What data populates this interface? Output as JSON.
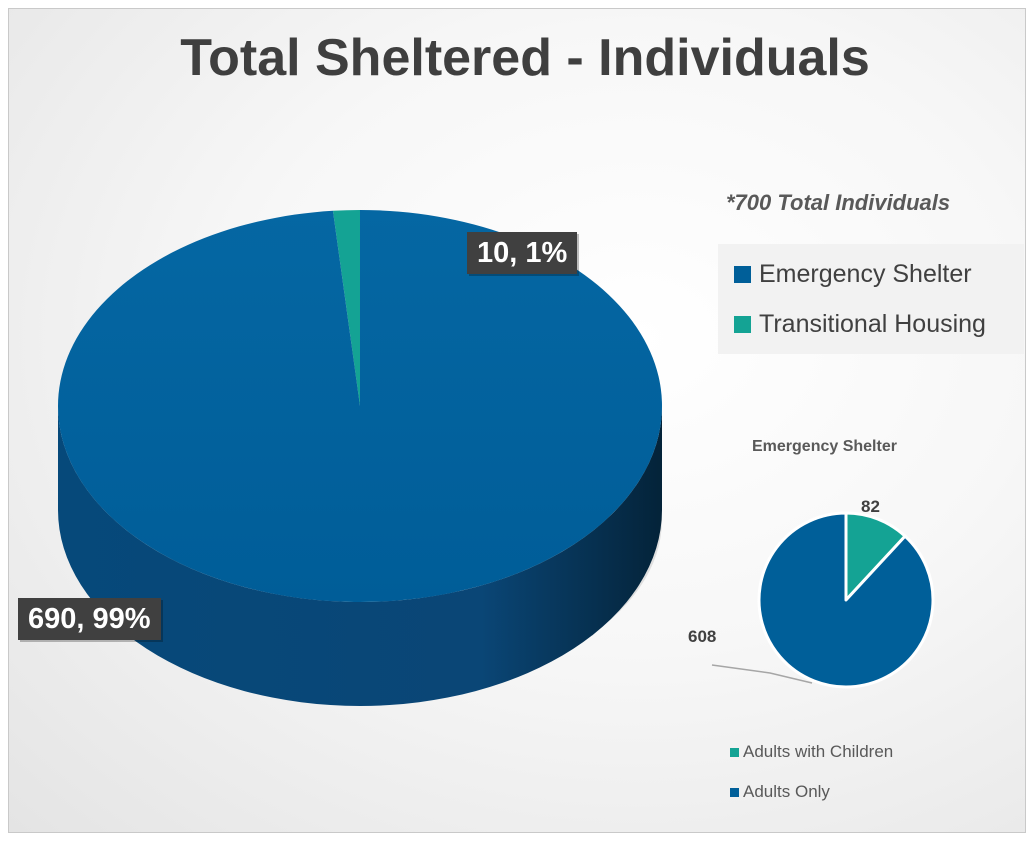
{
  "chart_data": [
    {
      "type": "pie",
      "title": "Total Sheltered - Individuals",
      "note": "*700 Total Individuals",
      "categories": [
        "Emergency Shelter",
        "Transitional Housing"
      ],
      "values": [
        690,
        10
      ],
      "data_labels": [
        "690, 99%",
        "10, 1%"
      ],
      "colors": [
        "#005f99",
        "#14a394"
      ],
      "legend": "right",
      "style": "3d"
    },
    {
      "type": "pie",
      "title": "Emergency Shelter",
      "categories": [
        "Adults with Children",
        "Adults Only"
      ],
      "values": [
        82,
        608
      ],
      "data_labels": [
        "82",
        "608"
      ],
      "colors": [
        "#14a394",
        "#005f99"
      ],
      "legend": "bottom"
    }
  ]
}
